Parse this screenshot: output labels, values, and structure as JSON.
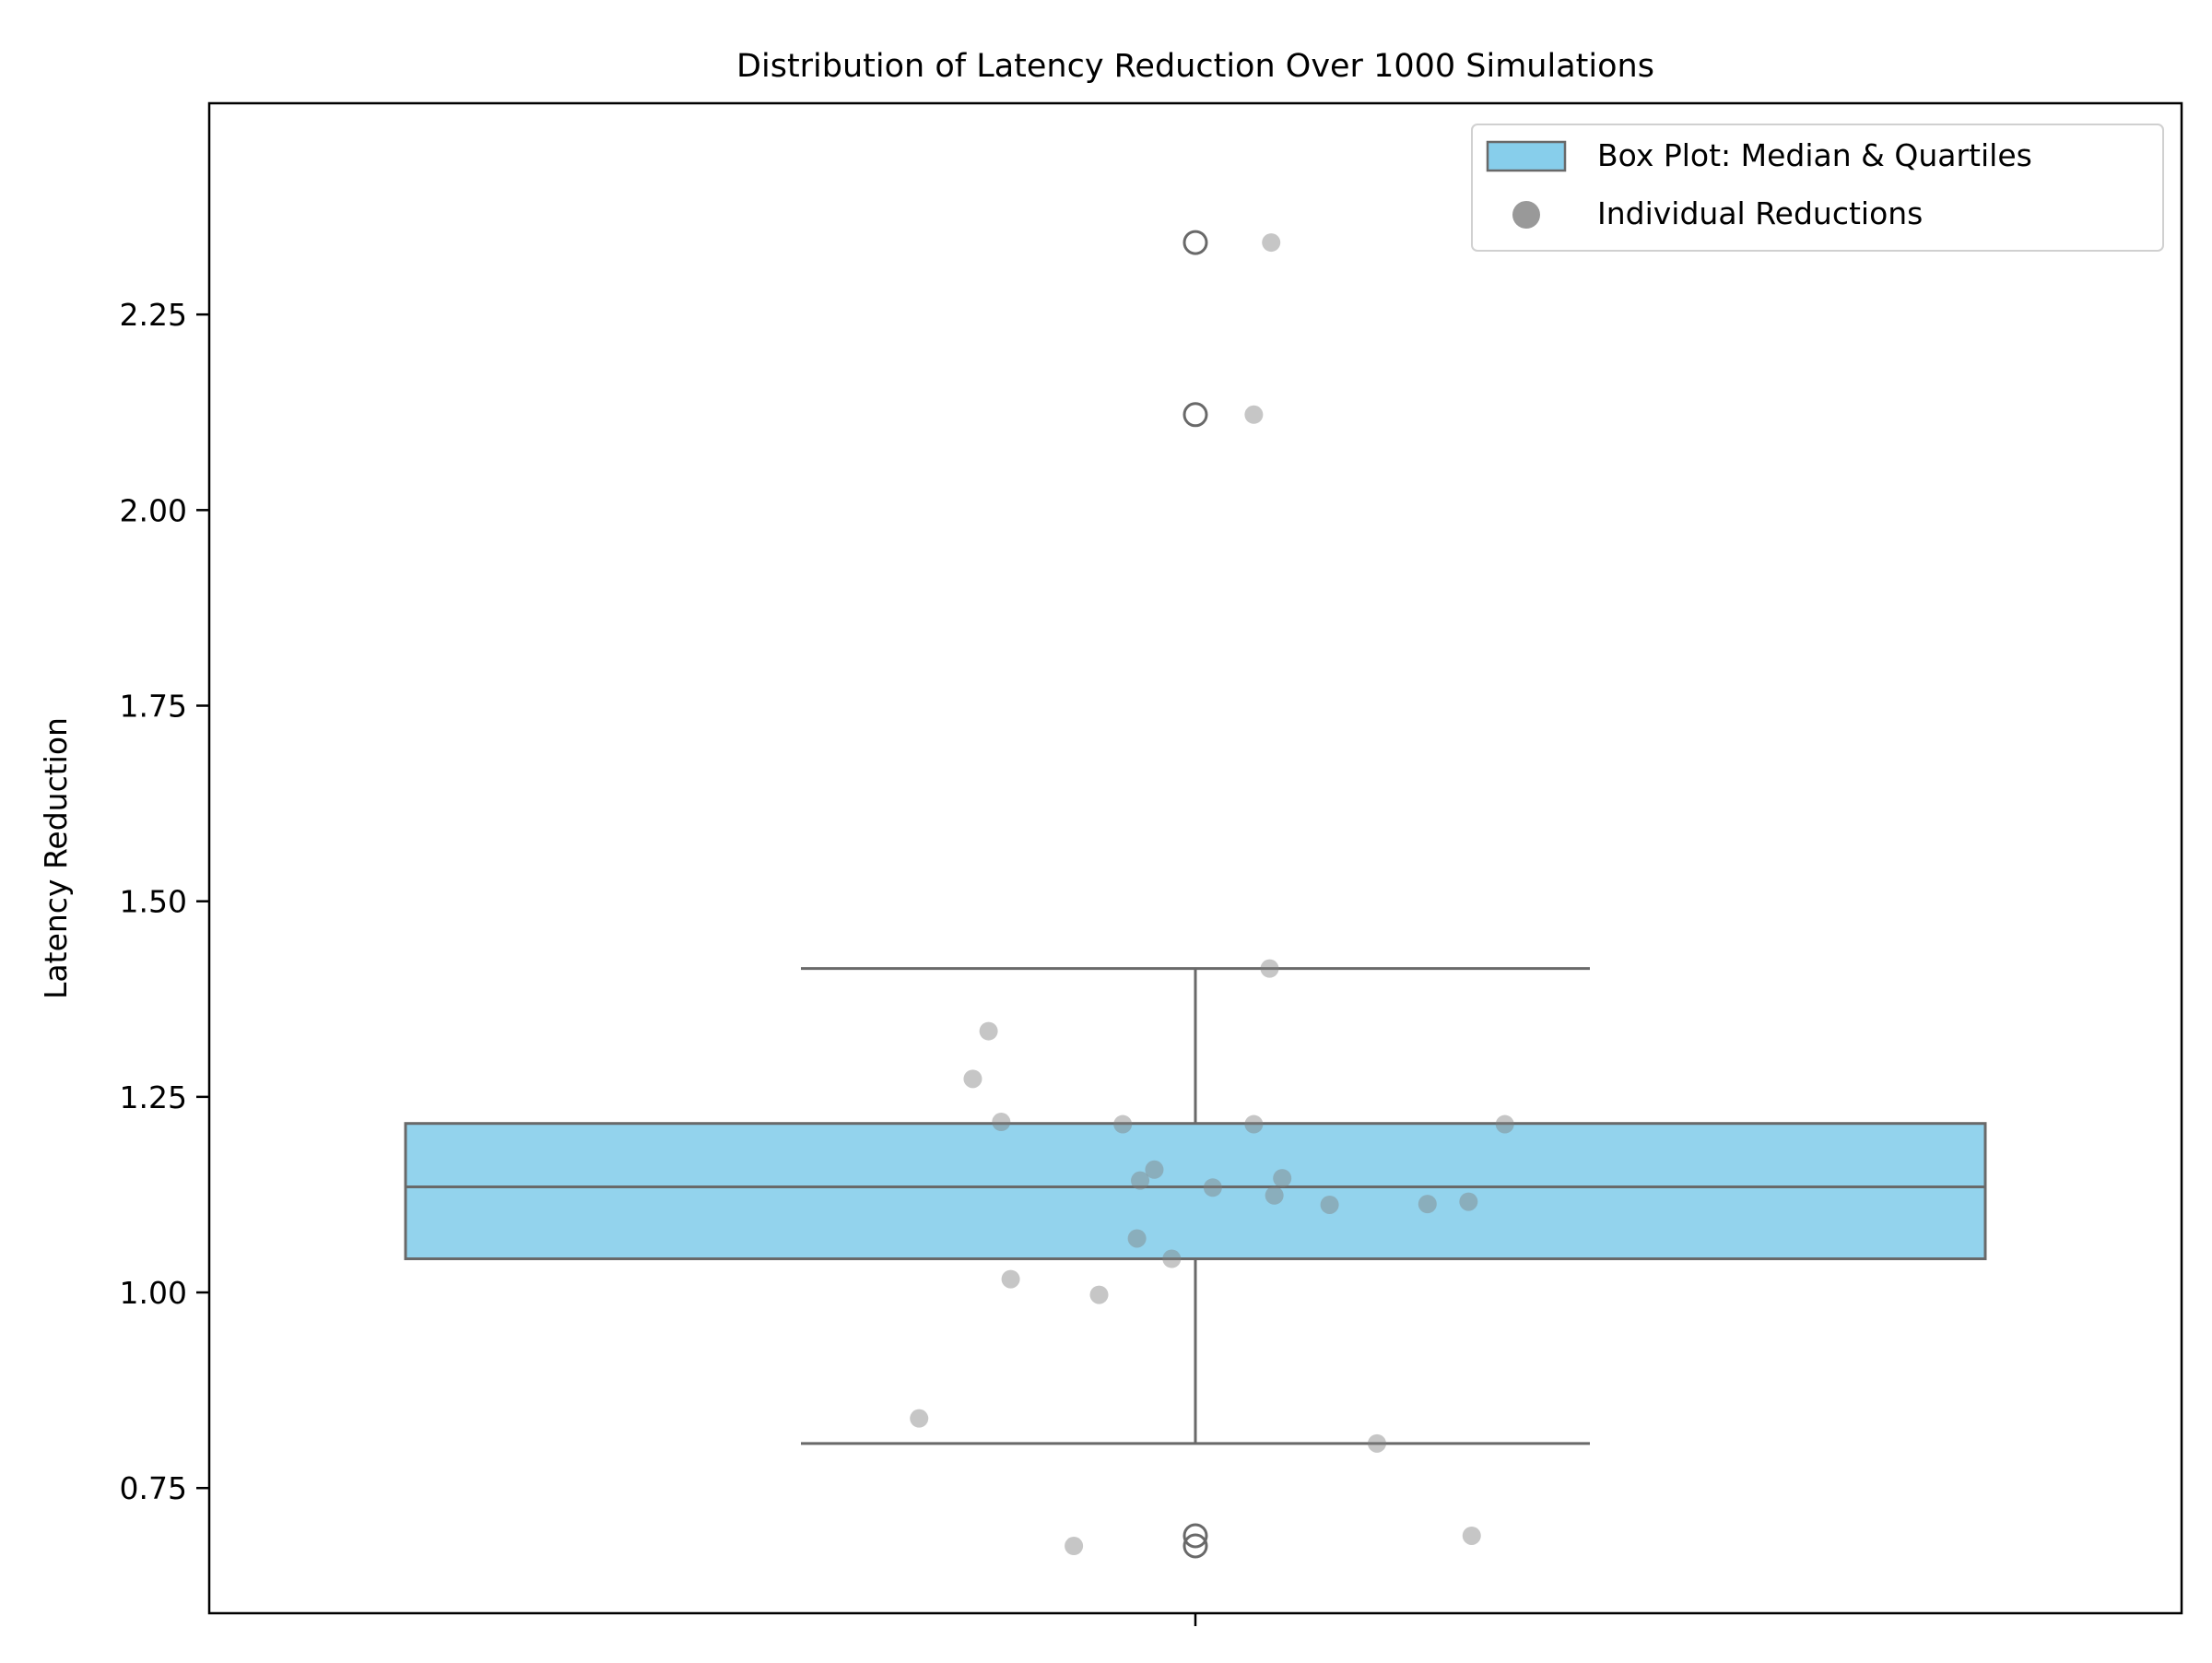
{
  "chart_data": {
    "type": "box",
    "title": "Distribution of Latency Reduction Over 1000 Simulations",
    "xlabel": "",
    "ylabel": "Latency Reduction",
    "ylim": [
      0.59,
      2.52
    ],
    "yticks": [
      0.75,
      1.0,
      1.25,
      1.5,
      1.75,
      2.0,
      2.25
    ],
    "ytick_labels": [
      "0.75",
      "1.00",
      "1.25",
      "1.50",
      "1.75",
      "2.00",
      "2.25"
    ],
    "grid": false,
    "legend_position": "top-right",
    "legend": [
      {
        "label": "Box Plot: Median & Quartiles",
        "marker": "box"
      },
      {
        "label": "Individual Reductions",
        "marker": "circle"
      }
    ],
    "box": {
      "whisker_low": 0.807,
      "q1": 1.043,
      "median": 1.135,
      "q3": 1.216,
      "whisker_high": 1.414,
      "outliers": [
        2.342,
        2.122,
        0.689,
        0.676
      ]
    },
    "points": [
      {
        "jitter": 0.048,
        "y": 2.342
      },
      {
        "jitter": 0.037,
        "y": 2.122
      },
      {
        "jitter": 0.047,
        "y": 1.414
      },
      {
        "jitter": -0.131,
        "y": 1.334
      },
      {
        "jitter": -0.141,
        "y": 1.273
      },
      {
        "jitter": -0.123,
        "y": 1.218
      },
      {
        "jitter": -0.046,
        "y": 1.215
      },
      {
        "jitter": 0.037,
        "y": 1.215
      },
      {
        "jitter": 0.196,
        "y": 1.215
      },
      {
        "jitter": -0.026,
        "y": 1.157
      },
      {
        "jitter": -0.035,
        "y": 1.143
      },
      {
        "jitter": 0.055,
        "y": 1.146
      },
      {
        "jitter": 0.011,
        "y": 1.134
      },
      {
        "jitter": 0.05,
        "y": 1.124
      },
      {
        "jitter": 0.085,
        "y": 1.112
      },
      {
        "jitter": 0.147,
        "y": 1.113
      },
      {
        "jitter": 0.173,
        "y": 1.116
      },
      {
        "jitter": -0.037,
        "y": 1.069
      },
      {
        "jitter": -0.015,
        "y": 1.043
      },
      {
        "jitter": -0.117,
        "y": 1.017
      },
      {
        "jitter": -0.061,
        "y": 0.997
      },
      {
        "jitter": -0.175,
        "y": 0.839
      },
      {
        "jitter": 0.115,
        "y": 0.807
      },
      {
        "jitter": -0.077,
        "y": 0.676
      },
      {
        "jitter": 0.175,
        "y": 0.689
      }
    ],
    "colors": {
      "box_fill": "#87CEEB",
      "box_edge": "#696969",
      "points": "#808080",
      "outlier_edge": "#696969"
    }
  }
}
